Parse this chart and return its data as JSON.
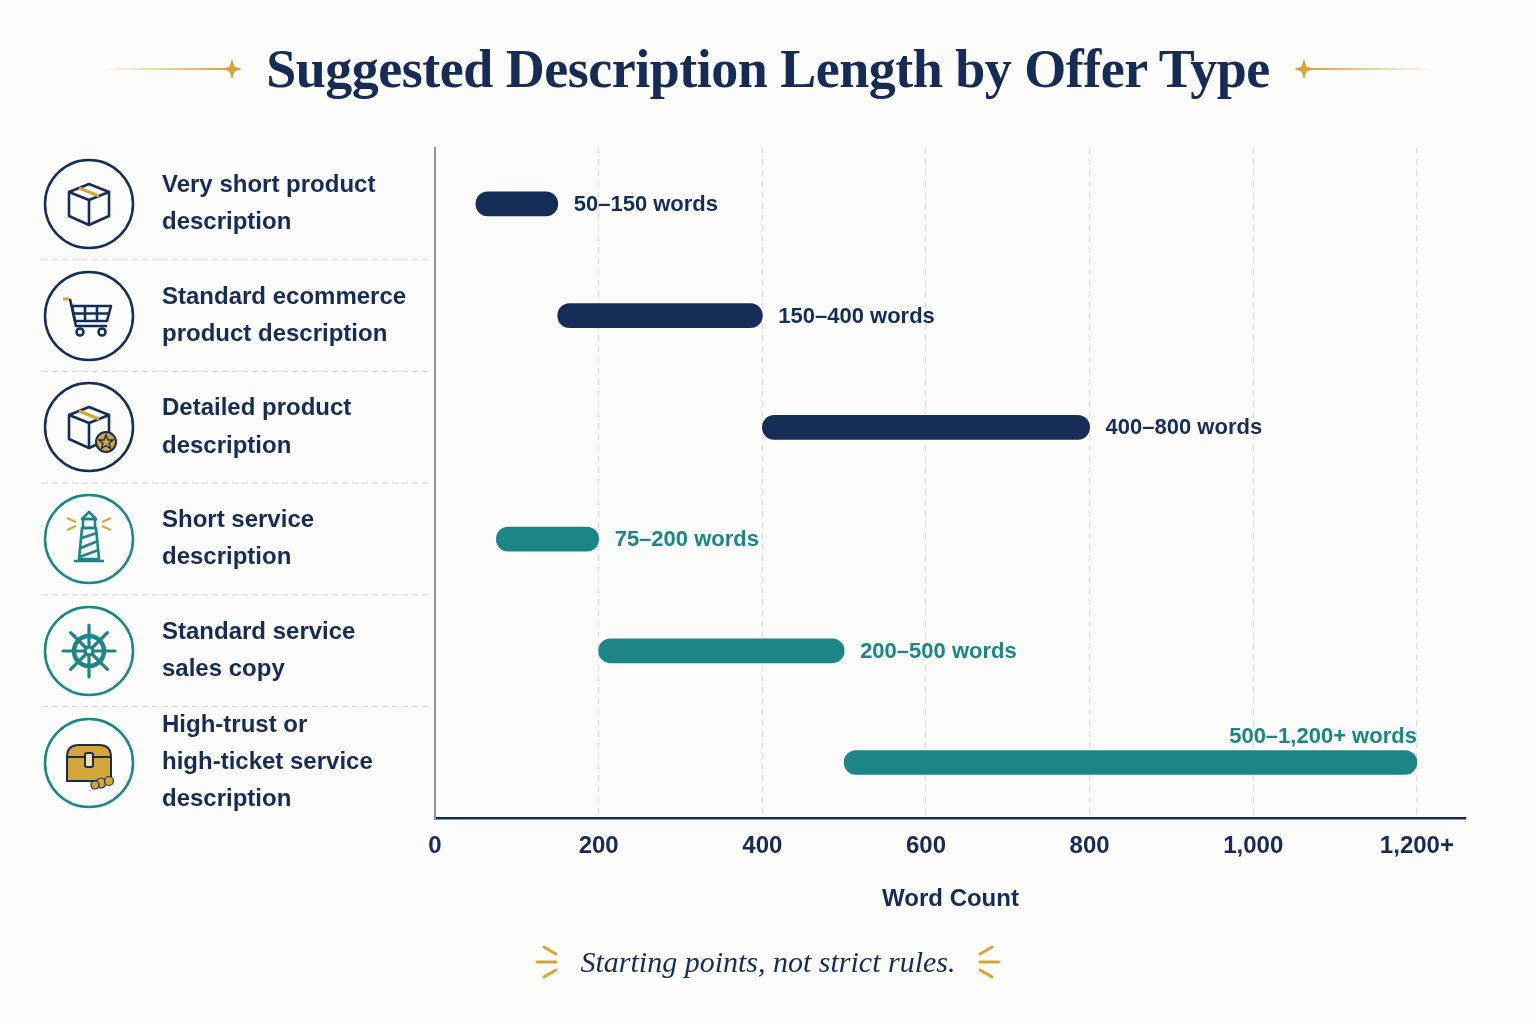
{
  "chart_data": {
    "type": "bar",
    "orientation": "horizontal",
    "title": "Suggested Description Length by Offer Type",
    "categories": [
      "Very short product description",
      "Standard ecommerce product description",
      "Detailed product description",
      "Short service description",
      "Standard service sales copy",
      "High-trust or high-ticket service description"
    ],
    "base": [
      50,
      150,
      400,
      75,
      200,
      500
    ],
    "values": [
      100,
      250,
      400,
      125,
      300,
      700
    ],
    "colors": [
      "#152d57",
      "#152d57",
      "#152d57",
      "#1e8587",
      "#1e8587",
      "#1e8587"
    ],
    "value_labels": [
      "50–150 words",
      "150–400 words",
      "400–800 words",
      "75–200 words",
      "200–500 words",
      "500–1,200+ words"
    ],
    "xlabel": "Word Count",
    "xlim": [
      0,
      1260
    ],
    "xticks": [
      0,
      200,
      400,
      600,
      800,
      {
        "value": 1000,
        "label": "1,000"
      },
      {
        "value": 1200,
        "label": "1,200+"
      }
    ],
    "grid": "x",
    "annotations": [
      "Starting points, not strict rules."
    ]
  }
}
